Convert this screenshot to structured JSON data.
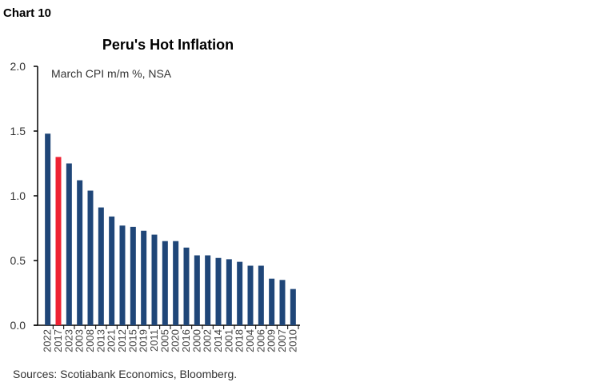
{
  "chart_label": "Chart 10",
  "chart_data": {
    "type": "bar",
    "title": "Peru's Hot Inflation",
    "subtitle": "March CPI m/m %, NSA",
    "source": "Sources: Scotiabank Economics, Bloomberg.",
    "categories": [
      "2022",
      "2017",
      "2023",
      "2003",
      "2008",
      "2013",
      "2021",
      "2012",
      "2015",
      "2019",
      "2011",
      "2005",
      "2020",
      "2016",
      "2000",
      "2002",
      "2014",
      "2001",
      "2018",
      "2004",
      "2006",
      "2009",
      "2007",
      "2010"
    ],
    "values": [
      1.48,
      1.3,
      1.25,
      1.12,
      1.04,
      0.91,
      0.84,
      0.77,
      0.76,
      0.73,
      0.7,
      0.65,
      0.65,
      0.6,
      0.54,
      0.54,
      0.52,
      0.51,
      0.49,
      0.46,
      0.46,
      0.36,
      0.35,
      0.28
    ],
    "highlight": "2017",
    "yticks": [
      "0.0",
      "0.5",
      "1.0",
      "1.5",
      "2.0"
    ],
    "ylim": [
      0,
      2.0
    ],
    "colors": {
      "bar": "#1f4678",
      "highlight": "#ee2233"
    }
  }
}
